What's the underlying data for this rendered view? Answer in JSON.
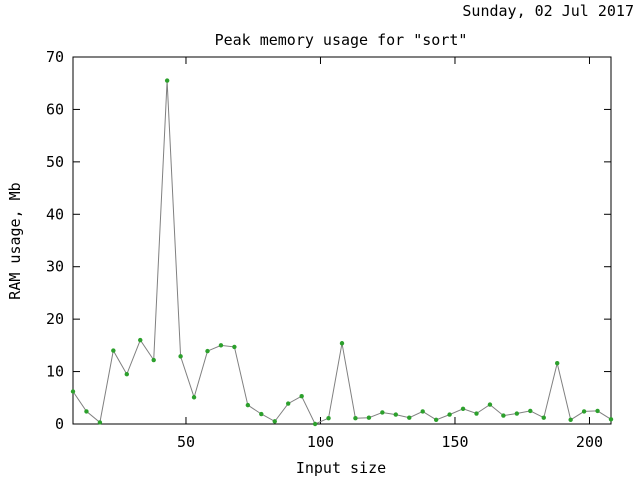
{
  "header": {
    "date_text": "Sunday, 02 Jul 2017"
  },
  "chart_data": {
    "type": "line",
    "title": "Peak memory usage for \"sort\"",
    "xlabel": "Input size",
    "ylabel": "RAM usage, Mb",
    "xlim": [
      8,
      208
    ],
    "ylim": [
      0,
      70
    ],
    "xticks": [
      50,
      100,
      150,
      200
    ],
    "yticks": [
      0,
      10,
      20,
      30,
      40,
      50,
      60,
      70
    ],
    "grid": false,
    "legend": "none",
    "line_color": "#808080",
    "marker_color": "#2ca02c",
    "series": [
      {
        "x": [
          8,
          13,
          18,
          23,
          28,
          33,
          38,
          43,
          48,
          53,
          58,
          63,
          68,
          73,
          78,
          83,
          88,
          93,
          98,
          103,
          108,
          113,
          118,
          123,
          128,
          133,
          138,
          143,
          148,
          153,
          158,
          163,
          168,
          173,
          178,
          183,
          188,
          193,
          198,
          203,
          208
        ],
        "values": [
          6.2,
          2.4,
          0.3,
          14.0,
          9.5,
          16.0,
          12.2,
          65.5,
          12.9,
          5.1,
          13.9,
          15.0,
          14.7,
          3.6,
          1.9,
          0.5,
          3.9,
          5.3,
          0.0,
          1.1,
          15.4,
          1.1,
          1.2,
          2.2,
          1.8,
          1.2,
          2.4,
          0.8,
          1.8,
          2.9,
          2.0,
          3.7,
          1.6,
          2.0,
          2.5,
          1.2,
          11.6,
          0.8,
          2.4,
          2.5,
          0.9
        ]
      }
    ]
  }
}
